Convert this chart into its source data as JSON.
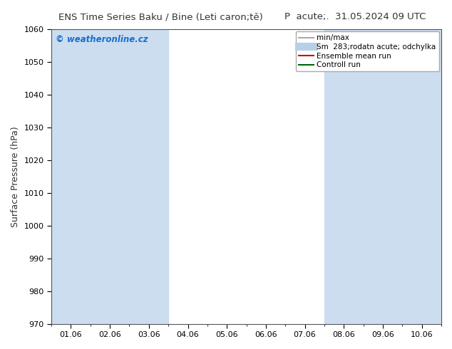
{
  "title_left": "ENS Time Series Baku / Bine (Leti caron;tě)",
  "title_right": "P  acute;.  31.05.2024 09 UTC",
  "ylabel": "Surface Pressure (hPa)",
  "ylim": [
    970,
    1060
  ],
  "yticks": [
    970,
    980,
    990,
    1000,
    1010,
    1020,
    1030,
    1040,
    1050,
    1060
  ],
  "xtick_labels": [
    "01.06",
    "02.06",
    "03.06",
    "04.06",
    "05.06",
    "06.06",
    "07.06",
    "08.06",
    "09.06",
    "10.06"
  ],
  "background_color": "#ffffff",
  "plot_bg_color": "#ffffff",
  "shade_color": "#ccddf0",
  "shaded_indices": [
    0,
    1,
    2,
    7,
    8,
    9
  ],
  "watermark": "© weatheronline.cz",
  "watermark_color": "#1a6ecc",
  "legend_items": [
    {
      "label": "min/max",
      "color": "#aaaaaa",
      "lw": 1.5
    },
    {
      "label": "Sm  283;rodatn acute; odchylka",
      "color": "#b8cfe8",
      "lw": 7
    },
    {
      "label": "Ensemble mean run",
      "color": "#cc0000",
      "lw": 1.5
    },
    {
      "label": "Controll run",
      "color": "#006600",
      "lw": 1.5
    }
  ],
  "fig_width": 6.34,
  "fig_height": 4.9,
  "dpi": 100
}
